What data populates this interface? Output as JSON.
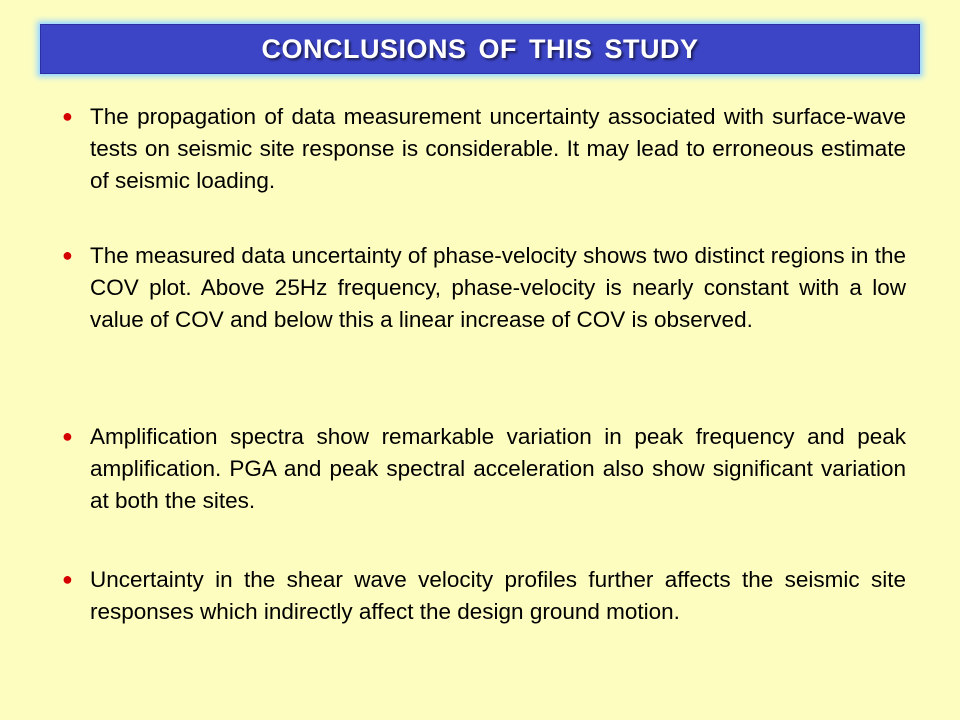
{
  "title": "CONCLUSIONS OF THIS STUDY",
  "bullet_symbol": "●",
  "colors": {
    "background": "#fdfdc0",
    "title_bar": "#3d45c7",
    "bullet": "#d40000"
  },
  "bullets": [
    "The propagation of data measurement uncertainty associated with surface-wave tests on seismic site response is considerable. It may lead to erroneous estimate of seismic loading.",
    "The measured data uncertainty of phase-velocity shows two distinct regions in the COV plot. Above 25Hz frequency, phase-velocity is nearly constant with a low value of COV and below this a linear increase of COV is observed.",
    "Amplification spectra show remarkable variation in peak frequency and peak amplification. PGA and peak spectral acceleration also show significant variation at both the sites.",
    "Uncertainty in the shear wave velocity profiles further affects the seismic site responses which indirectly affect the design ground motion."
  ]
}
